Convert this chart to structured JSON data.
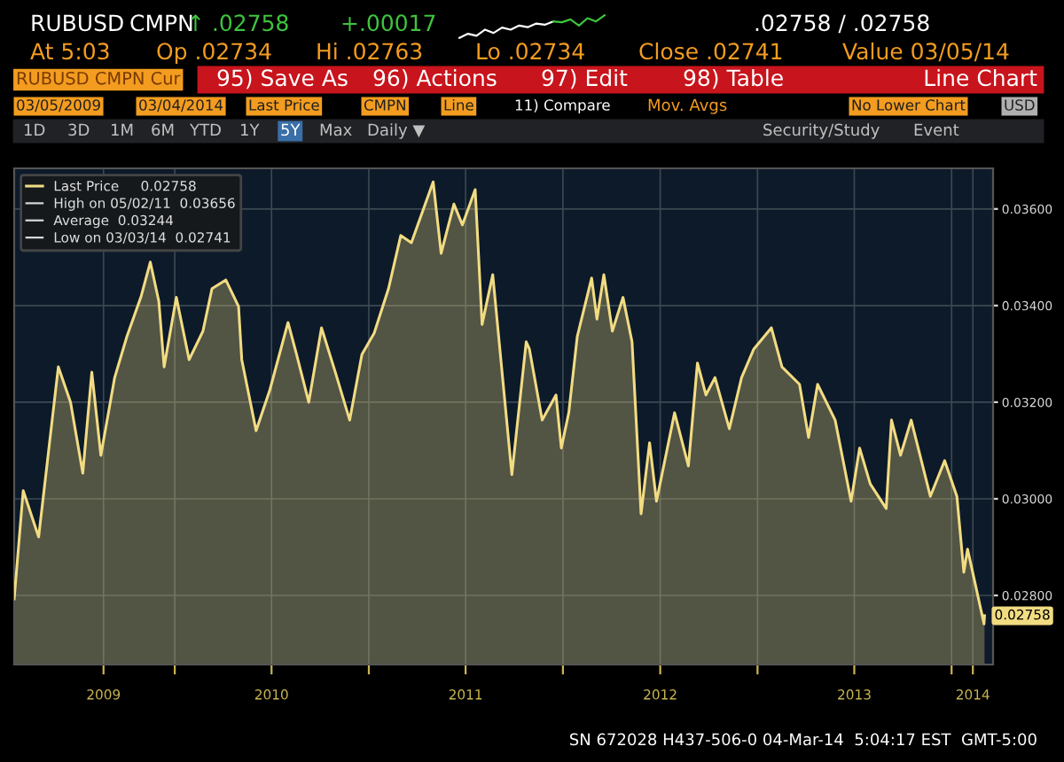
{
  "chart_data": {
    "type": "area",
    "x": [
      "2009-03-05",
      "2009-03-22",
      "2009-04-20",
      "2009-05-27",
      "2009-06-19",
      "2009-07-12",
      "2009-07-29",
      "2009-08-15",
      "2009-08-31",
      "2009-09-10",
      "2009-10-03",
      "2009-10-30",
      "2009-11-16",
      "2009-12-02",
      "2009-12-12",
      "2010-01-04",
      "2010-01-28",
      "2010-02-23",
      "2010-03-12",
      "2010-04-07",
      "2010-05-01",
      "2010-05-07",
      "2010-06-03",
      "2010-06-29",
      "2010-08-02",
      "2010-08-18",
      "2010-09-10",
      "2010-10-04",
      "2010-10-30",
      "2010-11-26",
      "2010-12-19",
      "2011-01-11",
      "2011-02-07",
      "2011-03-02",
      "2011-03-22",
      "2011-05-02",
      "2011-05-17",
      "2011-06-10",
      "2011-06-26",
      "2011-07-20",
      "2011-08-02",
      "2011-08-22",
      "2011-09-27",
      "2011-10-24",
      "2011-10-30",
      "2011-11-23",
      "2011-12-19",
      "2011-12-29",
      "2012-01-12",
      "2012-01-28",
      "2012-02-24",
      "2012-03-05",
      "2012-03-18",
      "2012-04-03",
      "2012-04-23",
      "2012-05-10",
      "2012-05-27",
      "2012-06-12",
      "2012-06-25",
      "2012-07-29",
      "2012-08-24",
      "2012-09-10",
      "2012-09-26",
      "2012-10-13",
      "2012-11-09",
      "2012-12-02",
      "2012-12-25",
      "2013-01-27",
      "2013-02-16",
      "2013-03-21",
      "2013-04-07",
      "2013-04-24",
      "2013-05-27",
      "2013-06-26",
      "2013-07-12",
      "2013-08-01",
      "2013-08-31",
      "2013-09-10",
      "2013-09-27",
      "2013-10-17",
      "2013-11-22",
      "2013-12-19",
      "2014-01-11",
      "2014-01-24",
      "2014-01-31",
      "2014-03-03",
      "2014-03-04"
    ],
    "series": [
      {
        "name": "Last Price",
        "color": "#f2dc82",
        "values": [
          0.02793,
          0.03017,
          0.02921,
          0.03273,
          0.032,
          0.03053,
          0.03262,
          0.0309,
          0.03189,
          0.03251,
          0.03336,
          0.0342,
          0.0349,
          0.03409,
          0.03273,
          0.03417,
          0.03288,
          0.03347,
          0.03435,
          0.03453,
          0.03398,
          0.03288,
          0.03141,
          0.03226,
          0.03365,
          0.03299,
          0.032,
          0.03354,
          0.03262,
          0.03163,
          0.03299,
          0.03343,
          0.03435,
          0.03545,
          0.0353,
          0.03656,
          0.03508,
          0.0361,
          0.03567,
          0.0364,
          0.03361,
          0.03464,
          0.0305,
          0.03325,
          0.0331,
          0.03163,
          0.03215,
          0.03105,
          0.03178,
          0.03336,
          0.03457,
          0.03372,
          0.03464,
          0.03347,
          0.03417,
          0.03325,
          0.02969,
          0.03116,
          0.02995,
          0.03178,
          0.03068,
          0.03281,
          0.03215,
          0.03251,
          0.03145,
          0.03251,
          0.0331,
          0.03354,
          0.03273,
          0.03237,
          0.03127,
          0.03237,
          0.03163,
          0.02995,
          0.03105,
          0.03031,
          0.0298,
          0.03163,
          0.0309,
          0.03163,
          0.03005,
          0.03079,
          0.03005,
          0.02848,
          0.02896,
          0.02741,
          0.02758
        ]
      }
    ],
    "xlim": [
      "2009-03-05",
      "2014-03-20"
    ],
    "xticks": [
      {
        "value": "2009-08-20",
        "label": "2009"
      },
      {
        "value": "2010-01-01",
        "label": null
      },
      {
        "value": "2010-07-02",
        "label": "2010"
      },
      {
        "value": "2011-01-01",
        "label": null
      },
      {
        "value": "2011-07-02",
        "label": "2011"
      },
      {
        "value": "2012-01-01",
        "label": null
      },
      {
        "value": "2012-07-02",
        "label": "2012"
      },
      {
        "value": "2013-01-01",
        "label": null
      },
      {
        "value": "2013-07-02",
        "label": "2013"
      },
      {
        "value": "2014-01-01",
        "label": null
      },
      {
        "value": "2014-02-10",
        "label": "2014"
      }
    ],
    "ylim": [
      0.02657,
      0.03684
    ],
    "yticks": [
      {
        "value": 0.028,
        "label": "0.02800"
      },
      {
        "value": 0.03,
        "label": "0.03000"
      },
      {
        "value": 0.032,
        "label": "0.03200"
      },
      {
        "value": 0.034,
        "label": "0.03400"
      },
      {
        "value": 0.036,
        "label": "0.03600"
      }
    ],
    "grid": true,
    "legend": "top left",
    "annotations": [
      "RUBUSD",
      "CMPN",
      "↑ .02758",
      "+.00017",
      ".02758 / .02758",
      "At 5:03",
      "Op .02734",
      "Hi .02763",
      "Lo .02734",
      "Close .02741",
      "Value 03/05/14",
      "RUBUSD CMPN Cur",
      "95) Save As",
      "96) Actions",
      "97) Edit",
      "98) Table",
      "Line Chart",
      "03/05/2009",
      "03/04/2014",
      "Last Price",
      "CMPN",
      "Line",
      "11) Compare",
      "Mov. Avgs",
      "No Lower Chart",
      "USD",
      "1D",
      "3D",
      "1M",
      "6M",
      "YTD",
      "1Y",
      "5Y",
      "Max",
      "Daily ▼",
      "Security/Study",
      "Event",
      "SN 672028 H437-506-0 04-Mar-14  5:04:17 EST  GMT-5:00",
      "0.02758",
      "High on 05/02/11  0.03656",
      "Average  0.03244",
      "Low on 03/03/14  0.02741",
      {
        "text": "0.02758",
        "x": "2014-03-04",
        "y": 0.02758
      }
    ]
  }
}
